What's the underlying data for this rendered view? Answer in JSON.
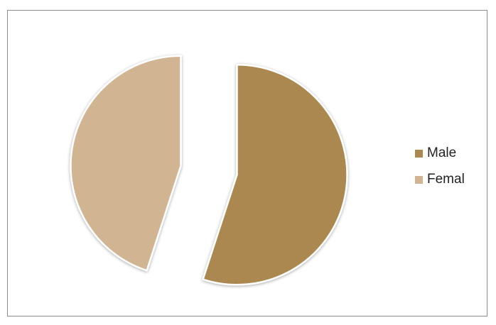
{
  "chart_data": {
    "type": "pie",
    "title": "",
    "exploded": true,
    "slices": [
      {
        "name": "Male",
        "value": 55,
        "color": "#ab884f"
      },
      {
        "name": "Femal",
        "value": 45,
        "color": "#d1b592"
      }
    ],
    "legend_position": "right"
  }
}
